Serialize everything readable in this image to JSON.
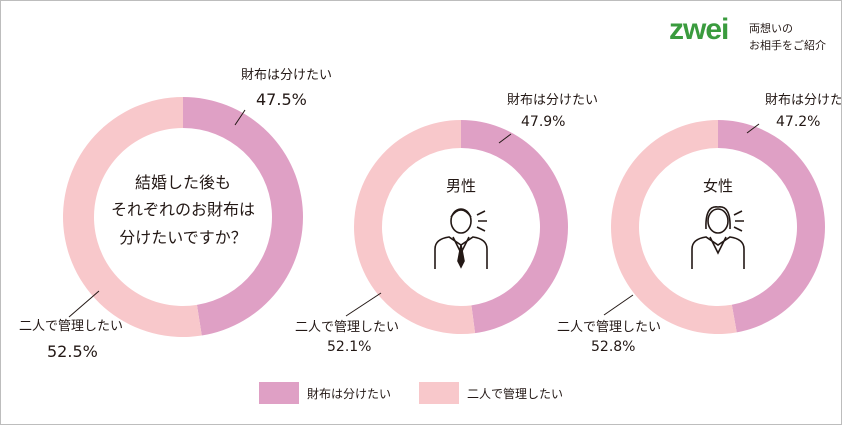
{
  "logo": {
    "wordmark": "zwei",
    "tagline_line1": "両想いの",
    "tagline_line2": "お相手をご紹介"
  },
  "colors": {
    "split": "#dfa0c5",
    "joint": "#f8c8cb",
    "logo_green": "#3a9b3e",
    "text": "#231815"
  },
  "icons": [
    "man-icon",
    "woman-icon"
  ],
  "chart_data": [
    {
      "type": "pie",
      "title": "結婚した後もそれぞれのお財布は分けたいですか？",
      "title_lines": [
        "結婚した後も",
        "それぞれのお財布は",
        "分けたいですか？"
      ],
      "slices": [
        {
          "label": "財布は分けたい",
          "value": 47.5,
          "display": "47.5%"
        },
        {
          "label": "二人で管理したい",
          "value": 52.5,
          "display": "52.5%"
        }
      ]
    },
    {
      "type": "pie",
      "title": "男性",
      "slices": [
        {
          "label": "財布は分けたい",
          "value": 47.9,
          "display": "47.9%"
        },
        {
          "label": "二人で管理したい",
          "value": 52.1,
          "display": "52.1%"
        }
      ]
    },
    {
      "type": "pie",
      "title": "女性",
      "slices": [
        {
          "label": "財布は分けたい",
          "value": 47.2,
          "display": "47.2%"
        },
        {
          "label": "二人で管理したい",
          "value": 52.8,
          "display": "52.8%"
        }
      ]
    }
  ],
  "legend": {
    "items": [
      {
        "label": "財布は分けたい",
        "color": "#dfa0c5"
      },
      {
        "label": "二人で管理したい",
        "color": "#f8c8cb"
      }
    ]
  }
}
